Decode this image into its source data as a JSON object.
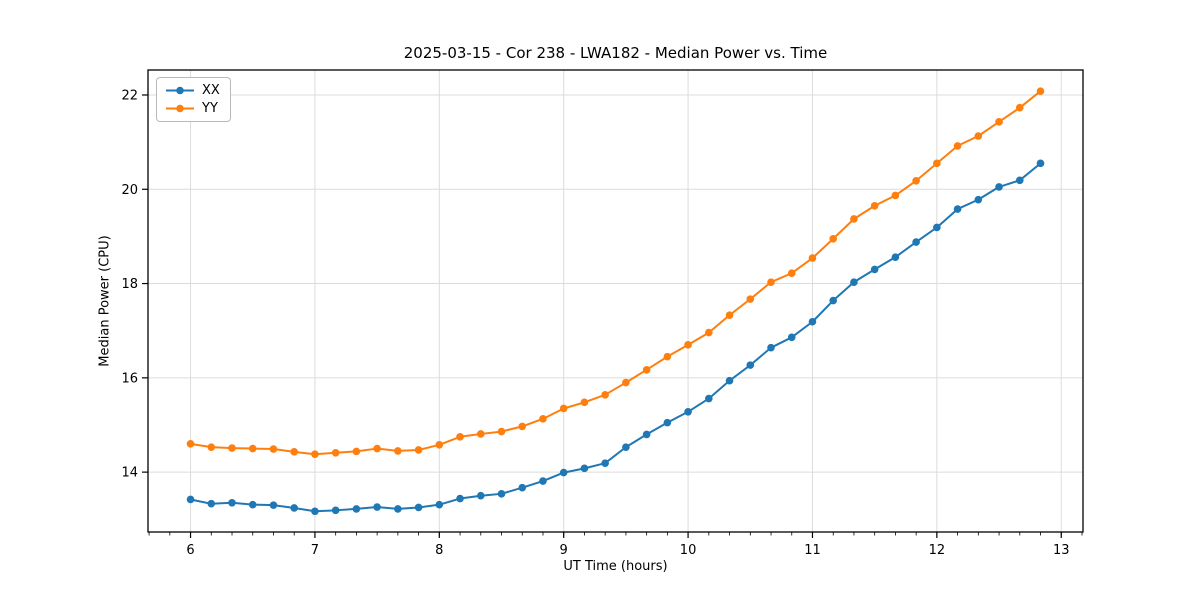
{
  "title": "2025-03-15 - Cor 238 - LWA182 - Median Power vs. Time",
  "colors": {
    "background": "#ffffff",
    "grid": "#dcdcdc",
    "spine": "#000000",
    "tick": "#000000",
    "series_xx": "#1f77b4",
    "series_yy": "#ff7f0e"
  },
  "chart_data": {
    "type": "line",
    "title": "2025-03-15 - Cor 238 - LWA182 - Median Power vs. Time",
    "xlabel": "UT Time (hours)",
    "ylabel": "Median Power (CPU)",
    "xlim": [
      5.658,
      13.175
    ],
    "ylim": [
      12.73,
      22.53
    ],
    "xticks": [
      6,
      7,
      8,
      9,
      10,
      11,
      12,
      13
    ],
    "yticks": [
      14,
      16,
      18,
      20,
      22
    ],
    "minor_xtick_step": 0.16667,
    "grid": true,
    "legend_position": "upper-left",
    "marker": "o",
    "x": [
      6.0,
      6.1667,
      6.3333,
      6.5,
      6.6667,
      6.8333,
      7.0,
      7.1667,
      7.3333,
      7.5,
      7.6667,
      7.8333,
      8.0,
      8.1667,
      8.3333,
      8.5,
      8.6667,
      8.8333,
      9.0,
      9.1667,
      9.3333,
      9.5,
      9.6667,
      9.8333,
      10.0,
      10.1667,
      10.3333,
      10.5,
      10.6667,
      10.8333,
      11.0,
      11.1667,
      11.3333,
      11.5,
      11.6667,
      11.8333,
      12.0,
      12.1667,
      12.3333,
      12.5,
      12.6667,
      12.8333
    ],
    "series": [
      {
        "name": "XX",
        "color": "#1f77b4",
        "values": [
          13.42,
          13.33,
          13.35,
          13.31,
          13.3,
          13.24,
          13.17,
          13.19,
          13.22,
          13.26,
          13.22,
          13.25,
          13.31,
          13.44,
          13.5,
          13.54,
          13.67,
          13.81,
          13.99,
          14.08,
          14.19,
          14.53,
          14.8,
          15.05,
          15.28,
          15.56,
          15.94,
          16.27,
          16.64,
          16.86,
          17.19,
          17.64,
          18.03,
          18.3,
          18.56,
          18.88,
          19.19,
          19.58,
          19.78,
          20.05,
          20.19,
          20.55
        ]
      },
      {
        "name": "YY",
        "color": "#ff7f0e",
        "values": [
          14.6,
          14.53,
          14.51,
          14.5,
          14.49,
          14.43,
          14.38,
          14.41,
          14.44,
          14.5,
          14.45,
          14.47,
          14.58,
          14.75,
          14.81,
          14.86,
          14.97,
          15.13,
          15.35,
          15.48,
          15.64,
          15.9,
          16.17,
          16.45,
          16.7,
          16.96,
          17.33,
          17.67,
          18.03,
          18.22,
          18.54,
          18.95,
          19.37,
          19.65,
          19.87,
          20.18,
          20.55,
          20.92,
          21.13,
          21.43,
          21.73,
          22.08
        ]
      }
    ]
  }
}
